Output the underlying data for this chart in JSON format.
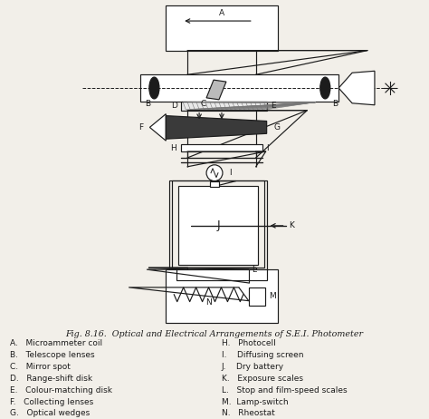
{
  "bg_color": "#f2efe9",
  "line_color": "#1c1c1c",
  "title": "Fig. 8.16.  Optical and Electrical Arrangements of S.E.I. Photometer",
  "legend_left": [
    "A.   Microammeter coil",
    "B.   Telescope lenses",
    "C.   Mirror spot",
    "D.   Range-shift disk",
    "E.   Colour-matching disk",
    "F.   Collecting lenses",
    "G.   Optical wedges"
  ],
  "legend_right": [
    "H.   Photocell",
    "I.    Diffusing screen",
    "J.    Dry battery",
    "K.   Exposure scales",
    "L.   Stop and film-speed scales",
    "M.  Lamp-switch",
    "N.   Rheostat"
  ]
}
